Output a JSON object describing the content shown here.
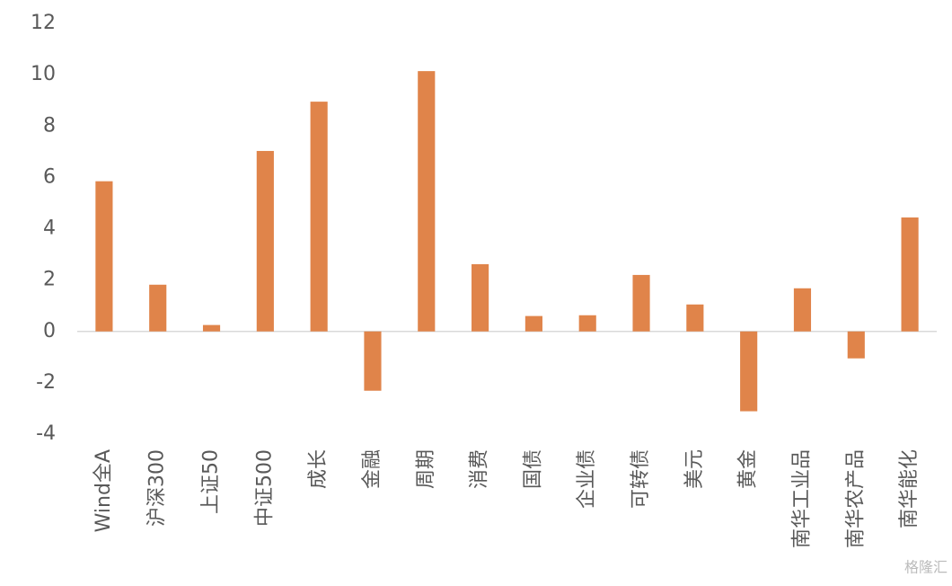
{
  "chart_data": {
    "type": "bar",
    "categories": [
      "Wind全A",
      "沪深300",
      "上证50",
      "中证500",
      "成长",
      "金融",
      "周期",
      "消费",
      "国债",
      "企业债",
      "可转债",
      "美元",
      "黄金",
      "南华工业品",
      "南华农产品",
      "南华能化"
    ],
    "values": [
      5.85,
      1.82,
      0.25,
      7.03,
      8.95,
      -2.31,
      10.14,
      2.62,
      0.6,
      0.63,
      2.2,
      1.05,
      -3.11,
      1.68,
      -1.05,
      4.44
    ],
    "color": "#e0844a",
    "ylim": [
      -4,
      12
    ],
    "yticks": [
      -4,
      -2,
      0,
      2,
      4,
      6,
      8,
      10,
      12
    ],
    "grid": false,
    "watermark": "格隆汇"
  }
}
